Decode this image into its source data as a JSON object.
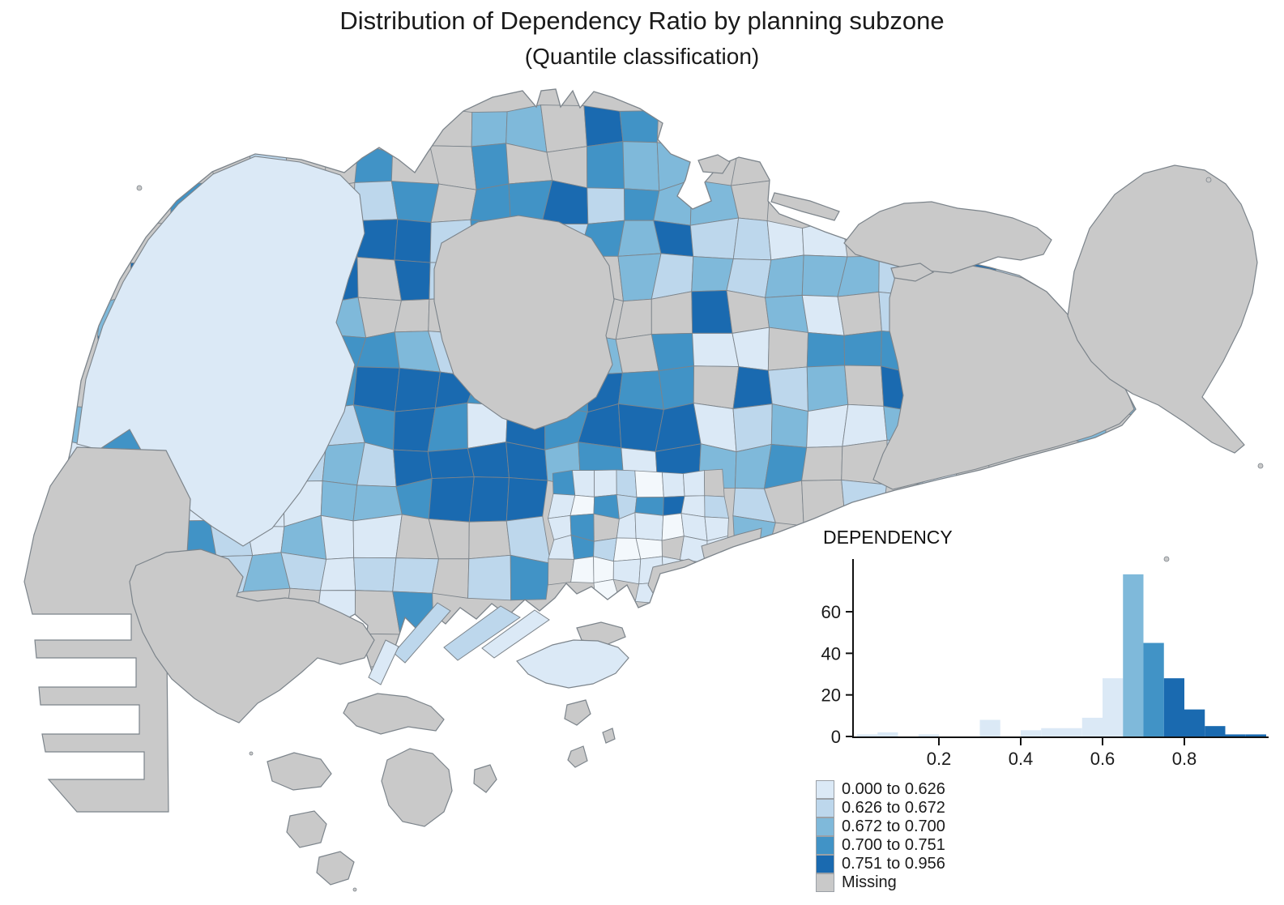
{
  "title": {
    "line1": "Distribution of Dependency Ratio by planning subzone",
    "line2": "(Quantile classification)"
  },
  "histogram": {
    "title": "DEPENDENCY"
  },
  "legend": {
    "items": [
      {
        "label": "0.000 to 0.626",
        "color": "#DBE9F6"
      },
      {
        "label": "0.626 to 0.672",
        "color": "#BDD7EC"
      },
      {
        "label": "0.672 to 0.700",
        "color": "#7FB9DA"
      },
      {
        "label": "0.700 to 0.751",
        "color": "#4193C6"
      },
      {
        "label": "0.751 to 0.956",
        "color": "#1A6AB0"
      },
      {
        "label": "Missing",
        "color": "#C9C9C9"
      }
    ]
  },
  "chart_data": {
    "type": "choropleth-map+histogram",
    "map": {
      "region": "Singapore planning subzones",
      "variable": "DEPENDENCY",
      "classification_method": "Quantile",
      "class_breaks": [
        0.0,
        0.626,
        0.672,
        0.7,
        0.751,
        0.956
      ],
      "classes": [
        {
          "range": "0.000 to 0.626",
          "color": "#DBE9F6"
        },
        {
          "range": "0.626 to 0.672",
          "color": "#BDD7EC"
        },
        {
          "range": "0.672 to 0.700",
          "color": "#7FB9DA"
        },
        {
          "range": "0.700 to 0.751",
          "color": "#4193C6"
        },
        {
          "range": "0.751 to 0.956",
          "color": "#1A6AB0"
        },
        {
          "range": "Missing",
          "color": "#C9C9C9"
        }
      ],
      "notes": "Large light class-1 area in the west (water catchment), large gray missing areas: central catchment, Tuas, Changi, offshore islands (Tekong, Ubin, Jurong Island, southern islands); dark class-5 cluster in the central-south."
    },
    "histogram": {
      "type": "bar",
      "title": "DEPENDENCY",
      "xlabel": "",
      "ylabel": "",
      "bin_width": 0.05,
      "bin_start": 0.0,
      "counts": [
        1,
        2,
        0,
        1,
        0,
        0,
        8,
        0,
        3,
        4,
        4,
        9,
        28,
        78,
        45,
        28,
        13,
        5,
        1,
        1
      ],
      "x_ticks": [
        0.2,
        0.4,
        0.6,
        0.8
      ],
      "y_ticks": [
        0,
        20,
        40,
        60
      ],
      "xlim": [
        0.0,
        1.0
      ],
      "ylim": [
        0,
        80
      ],
      "grid": false,
      "legend_position": "below-left",
      "bar_coloring": "by quantile class of bin midpoint"
    }
  },
  "colors": {
    "class1": "#DBE9F6",
    "class2": "#BDD7EC",
    "class3": "#7FB9DA",
    "class4": "#4193C6",
    "class5": "#1A6AB0",
    "missing": "#C9C9C9",
    "near_white_zone": "#F3F8FC",
    "boundary_stroke": "#7C848B",
    "coast_stroke": "#7C848B",
    "axis": "#111111",
    "text": "#1a1a1a",
    "background": "#ffffff"
  }
}
